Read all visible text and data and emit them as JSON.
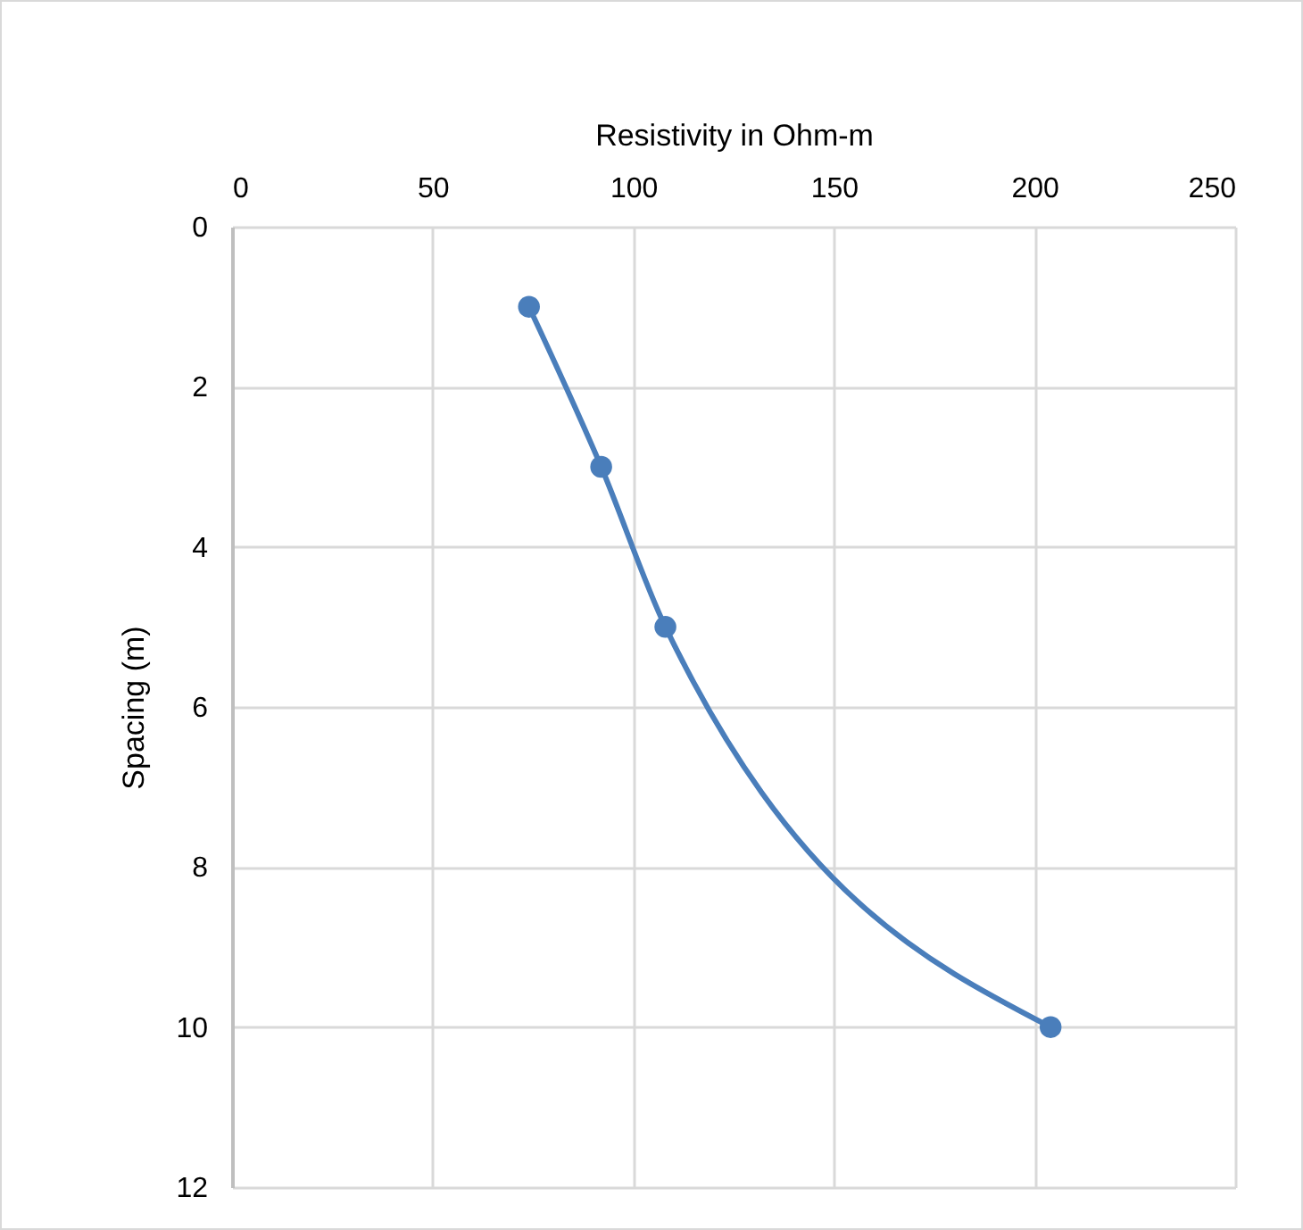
{
  "chart_data": {
    "type": "line",
    "xlabel": "Resistivity in Ohm-m",
    "ylabel": "Spacing (m)",
    "x": [
      74,
      92,
      108,
      204
    ],
    "series": [
      {
        "color": "#4a7ebb",
        "values": [
          1,
          3,
          5,
          10
        ]
      }
    ],
    "xlim": [
      0,
      250
    ],
    "xticks": [
      0,
      50,
      100,
      150,
      200,
      250
    ],
    "ylim": [
      12,
      0
    ],
    "yticks": [
      0,
      2,
      4,
      6,
      8,
      10,
      12
    ],
    "grid": true,
    "marker": "circle"
  }
}
